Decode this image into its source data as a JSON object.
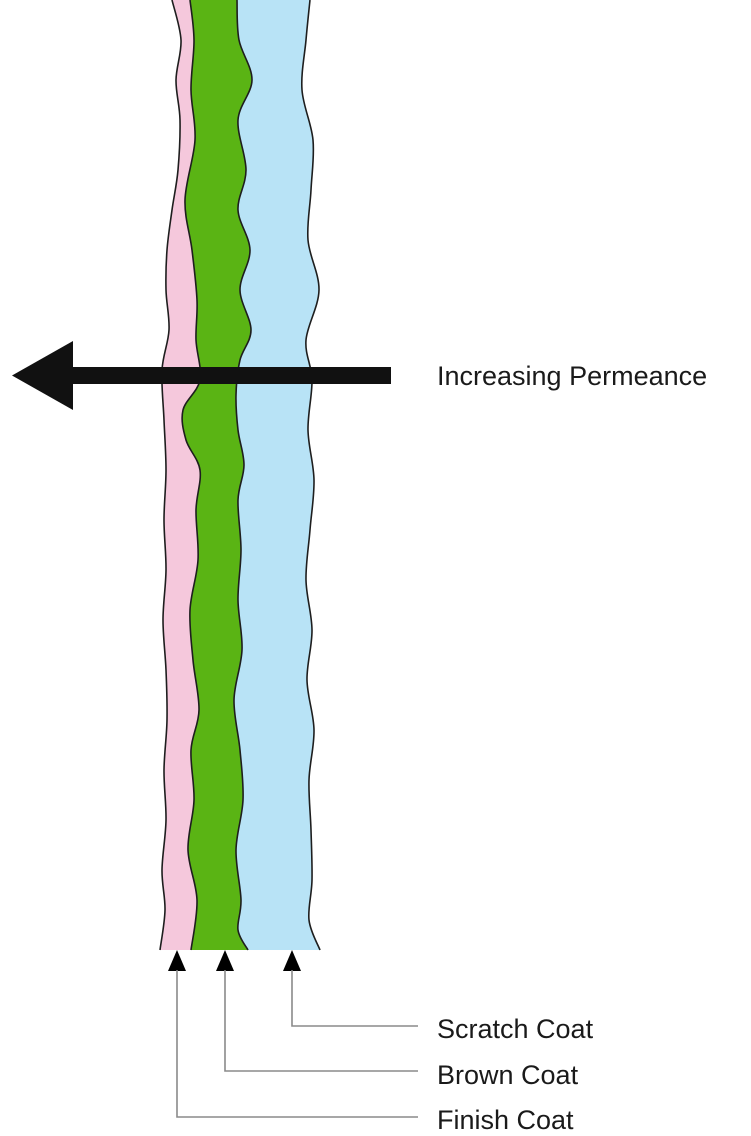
{
  "colors": {
    "finish_coat": "#f5c8dc",
    "brown_coat": "#5ab414",
    "scratch_coat": "#b8e3f6",
    "arrow": "#111111"
  },
  "permeance_arrow": {
    "label": "Increasing Permeance",
    "direction": "left"
  },
  "layers": [
    {
      "name": "Finish Coat",
      "label": "Finish Coat"
    },
    {
      "name": "Brown Coat",
      "label": "Brown Coat"
    },
    {
      "name": "Scratch Coat",
      "label": "Scratch Coat"
    }
  ]
}
